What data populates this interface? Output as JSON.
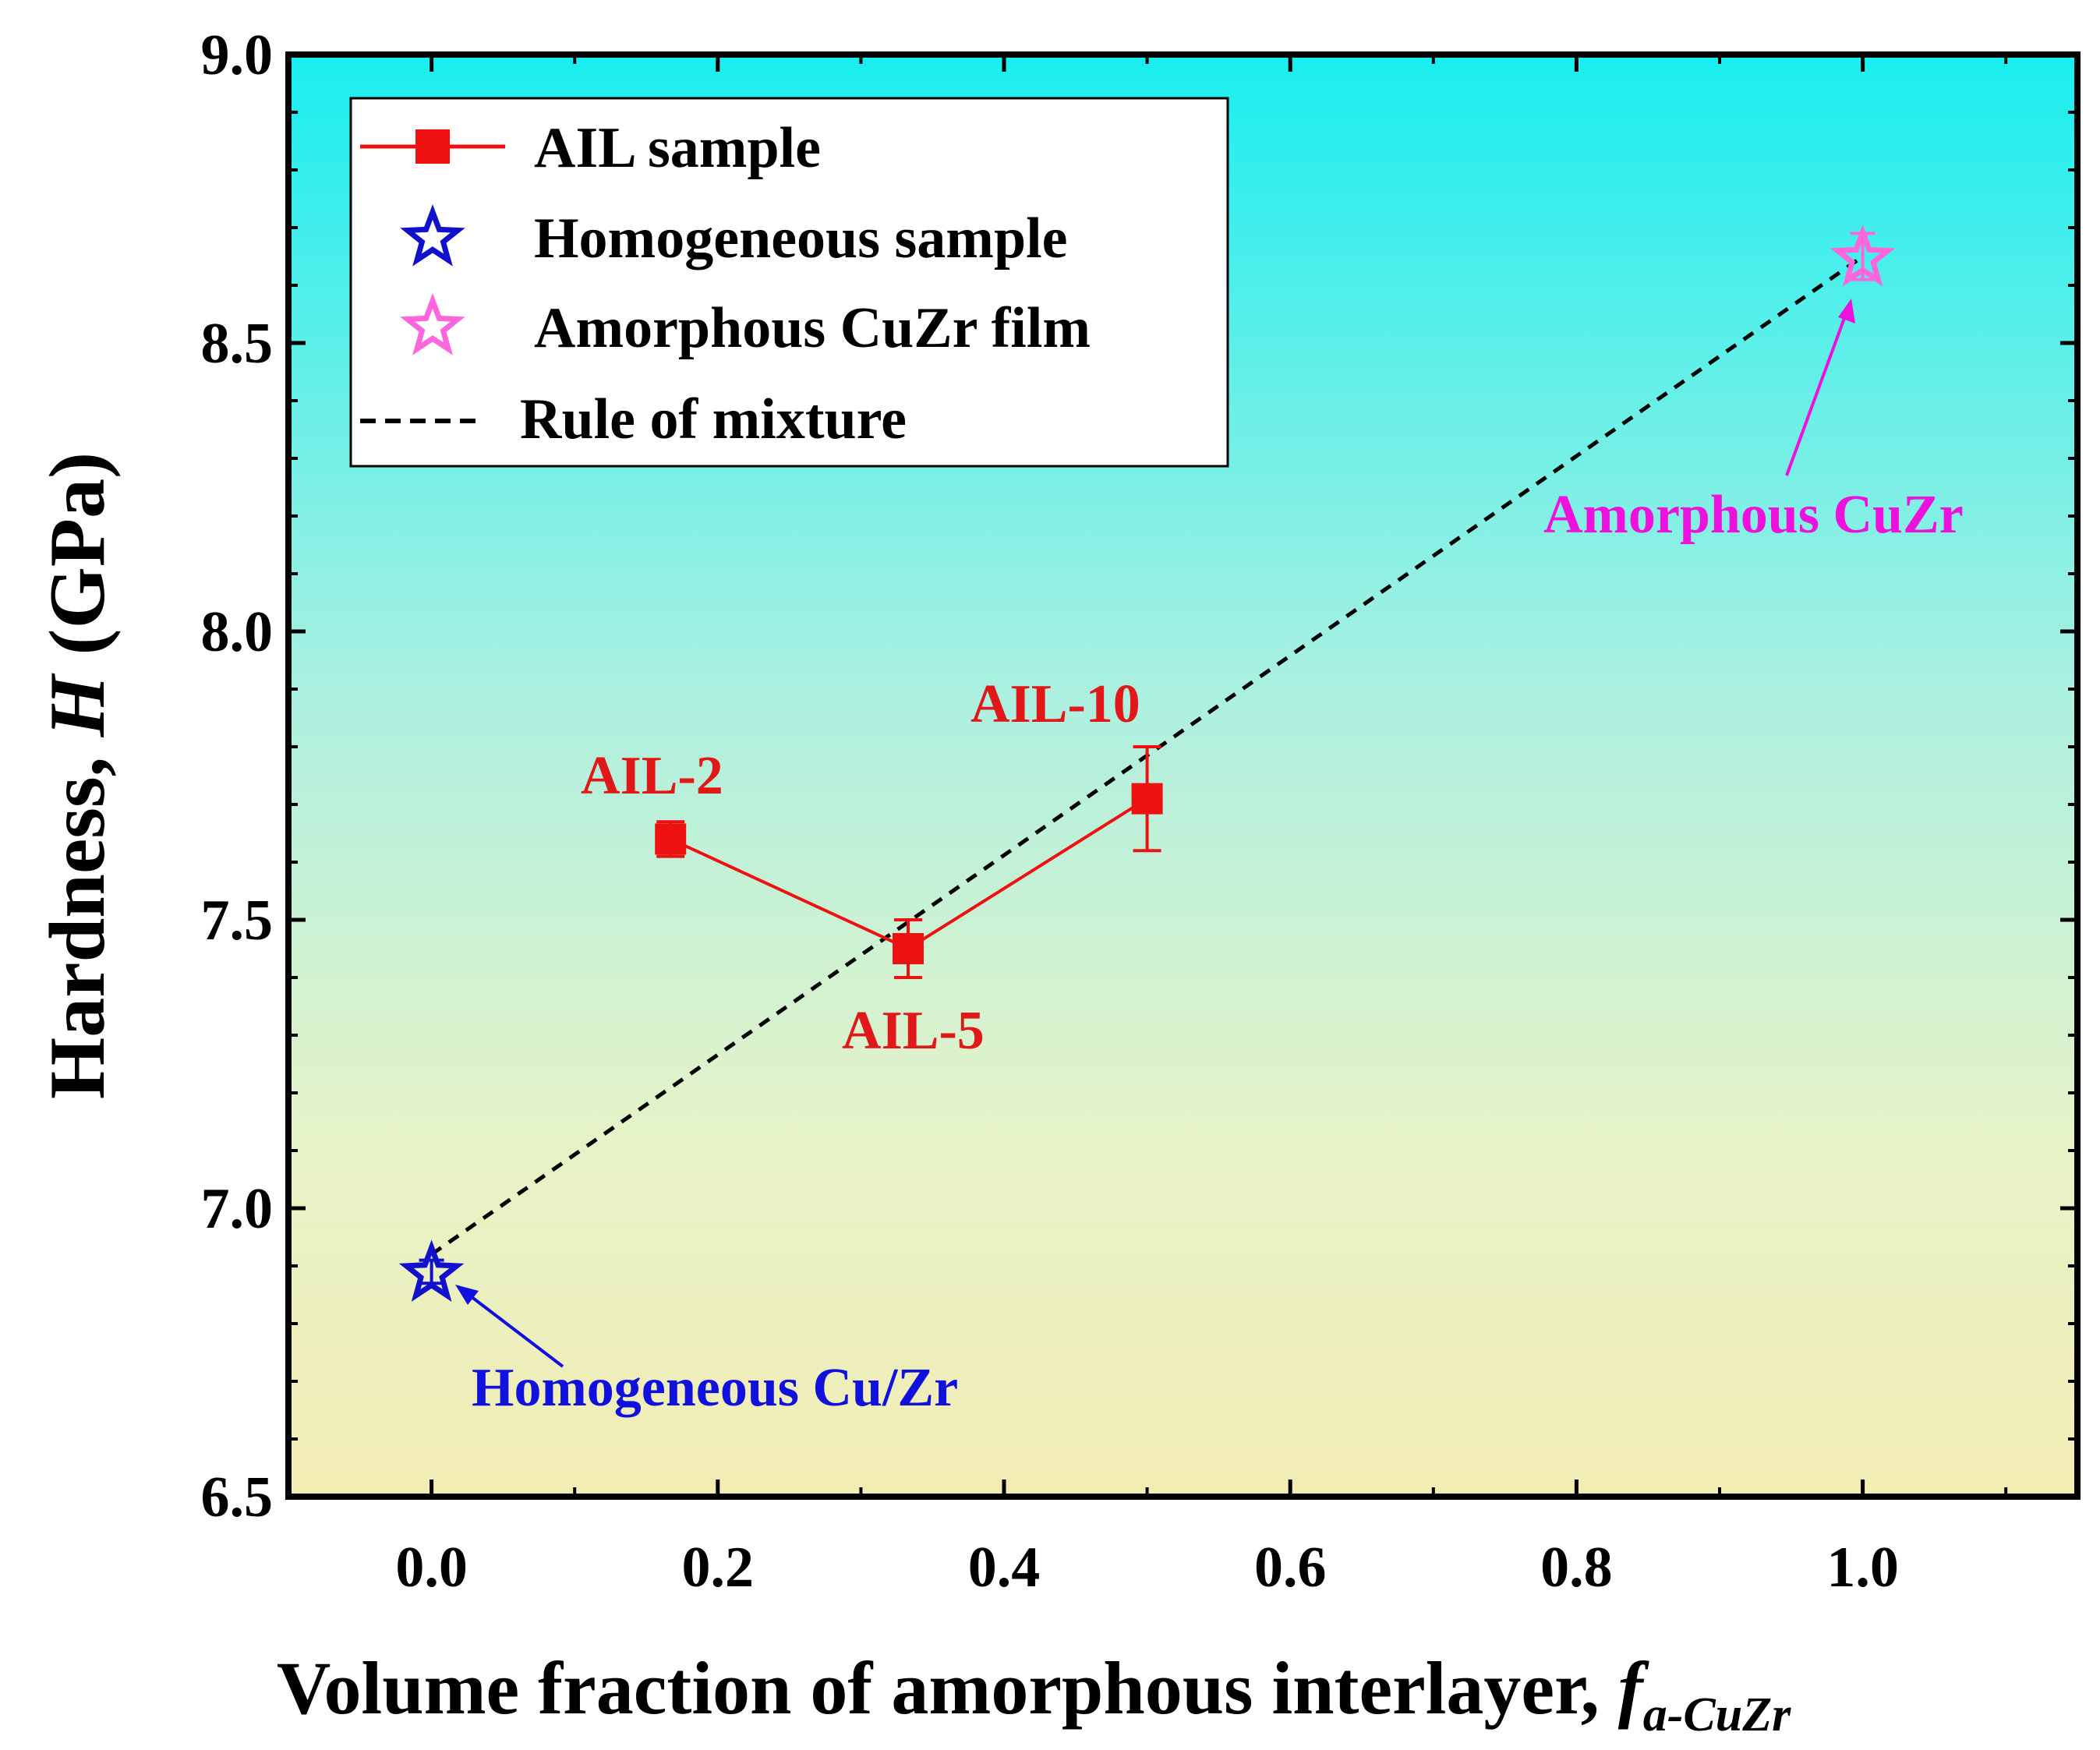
{
  "chart_data": {
    "type": "scatter",
    "xlabel": "Volume fraction of amorphous interlayer, ",
    "xlabel_symbol": "f",
    "xlabel_subscript": "a-CuZr",
    "ylabel": "Hardness, ",
    "ylabel_symbol": "H",
    "ylabel_unit": " (GPa)",
    "xlim": [
      -0.1,
      1.15
    ],
    "ylim": [
      6.5,
      9.0
    ],
    "xticks": [
      "0.0",
      "0.2",
      "0.4",
      "0.6",
      "0.8",
      "1.0"
    ],
    "yticks": [
      "6.5",
      "7.0",
      "7.5",
      "8.0",
      "8.5",
      "9.0"
    ],
    "background": "vertical gradient cyan (top) to pale yellow (bottom)",
    "series": [
      {
        "name": "AIL sample",
        "marker": "square",
        "line": "solid",
        "color": "#ee1111",
        "x": [
          0.167,
          0.333,
          0.5
        ],
        "y": [
          7.64,
          7.45,
          7.71
        ],
        "yerr": [
          0.03,
          0.05,
          0.09
        ]
      },
      {
        "name": "Homogeneous sample",
        "marker": "star-open",
        "color": "#1111cc",
        "x": [
          0.0
        ],
        "y": [
          6.89
        ],
        "yerr": [
          0.02
        ]
      },
      {
        "name": "Amorphous CuZr film",
        "marker": "star-open",
        "color": "#ff66dd",
        "x": [
          1.0
        ],
        "y": [
          8.65
        ],
        "yerr": [
          0.04
        ]
      },
      {
        "name": "Rule of mixture",
        "line": "dashed",
        "color": "#000000",
        "x": [
          0.0,
          1.0
        ],
        "y": [
          6.92,
          8.65
        ]
      }
    ],
    "legend": {
      "placement": "top-left"
    },
    "annotations": [
      {
        "text": "AIL-2",
        "x": 0.167,
        "y": 7.64,
        "color": "#e01818"
      },
      {
        "text": "AIL-5",
        "x": 0.333,
        "y": 7.45,
        "color": "#e01818"
      },
      {
        "text": "AIL-10",
        "x": 0.5,
        "y": 7.71,
        "color": "#e01818"
      },
      {
        "text": "Homogeneous Cu/Zr",
        "x": 0.0,
        "y": 6.89,
        "color": "#1111dd",
        "arrow": true
      },
      {
        "text": "Amorphous CuZr",
        "x": 1.0,
        "y": 8.65,
        "color": "#ee11dd",
        "arrow": true
      }
    ]
  }
}
